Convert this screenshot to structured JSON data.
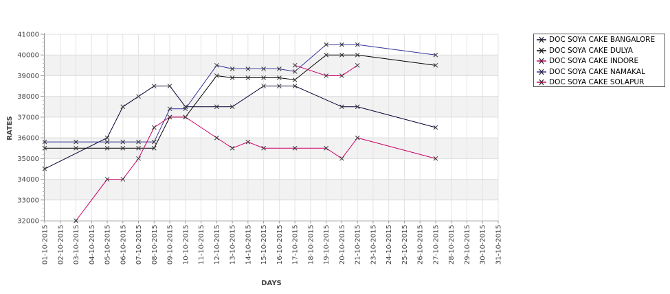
{
  "chart_data": {
    "type": "line",
    "title": "",
    "xlabel": "DAYS",
    "ylabel": "RATES",
    "ylim": [
      32000,
      41000
    ],
    "yticks": [
      32000,
      33000,
      34000,
      35000,
      36000,
      37000,
      38000,
      39000,
      40000,
      41000
    ],
    "categories": [
      "01-10-2015",
      "02-10-2015",
      "03-10-2015",
      "04-10-2015",
      "05-10-2015",
      "06-10-2015",
      "07-10-2015",
      "08-10-2015",
      "09-10-2015",
      "10-10-2015",
      "11-10-2015",
      "12-10-2015",
      "13-10-2015",
      "14-10-2015",
      "15-10-2015",
      "16-10-2015",
      "17-10-2015",
      "18-10-2015",
      "19-10-2015",
      "20-10-2015",
      "21-10-2015",
      "23-10-2015",
      "24-10-2015",
      "25-10-2015",
      "26-10-2015",
      "27-10-2015",
      "28-10-2015",
      "29-10-2015",
      "30-10-2015",
      "31-10-2015"
    ],
    "legend_position": "right",
    "grid": true,
    "series": [
      {
        "name": "DOC SOYA CAKE BANGALORE",
        "color": "#000033",
        "points": [
          [
            "01-10-2015",
            34500
          ],
          [
            "05-10-2015",
            36000
          ],
          [
            "06-10-2015",
            37500
          ],
          [
            "07-10-2015",
            38000
          ],
          [
            "08-10-2015",
            38500
          ],
          [
            "09-10-2015",
            38500
          ],
          [
            "10-10-2015",
            37500
          ],
          [
            "12-10-2015",
            37500
          ],
          [
            "13-10-2015",
            37500
          ],
          [
            "15-10-2015",
            38500
          ],
          [
            "16-10-2015",
            38500
          ],
          [
            "17-10-2015",
            38500
          ],
          [
            "20-10-2015",
            37500
          ],
          [
            "21-10-2015",
            37500
          ],
          [
            "27-10-2015",
            36500
          ]
        ]
      },
      {
        "name": "DOC SOYA CAKE DULYA",
        "color": "#000000",
        "points": [
          [
            "01-10-2015",
            35500
          ],
          [
            "03-10-2015",
            35500
          ],
          [
            "05-10-2015",
            35500
          ],
          [
            "06-10-2015",
            35500
          ],
          [
            "07-10-2015",
            35500
          ],
          [
            "08-10-2015",
            35500
          ],
          [
            "09-10-2015",
            37000
          ],
          [
            "10-10-2015",
            37000
          ],
          [
            "12-10-2015",
            39000
          ],
          [
            "13-10-2015",
            38900
          ],
          [
            "14-10-2015",
            38900
          ],
          [
            "15-10-2015",
            38900
          ],
          [
            "16-10-2015",
            38900
          ],
          [
            "17-10-2015",
            38800
          ],
          [
            "19-10-2015",
            40000
          ],
          [
            "20-10-2015",
            40000
          ],
          [
            "21-10-2015",
            40000
          ],
          [
            "27-10-2015",
            39500
          ]
        ]
      },
      {
        "name": "DOC SOYA CAKE INDORE",
        "color": "#cc0066",
        "points": [
          [
            "17-10-2015",
            39500
          ],
          [
            "19-10-2015",
            39000
          ],
          [
            "20-10-2015",
            39000
          ],
          [
            "21-10-2015",
            39500
          ]
        ]
      },
      {
        "name": "DOC SOYA CAKE NAMAKAL",
        "color": "#333399",
        "points": [
          [
            "01-10-2015",
            35800
          ],
          [
            "03-10-2015",
            35800
          ],
          [
            "05-10-2015",
            35800
          ],
          [
            "06-10-2015",
            35800
          ],
          [
            "07-10-2015",
            35800
          ],
          [
            "08-10-2015",
            35800
          ],
          [
            "09-10-2015",
            37400
          ],
          [
            "10-10-2015",
            37400
          ],
          [
            "12-10-2015",
            39500
          ],
          [
            "13-10-2015",
            39330
          ],
          [
            "14-10-2015",
            39330
          ],
          [
            "15-10-2015",
            39330
          ],
          [
            "16-10-2015",
            39330
          ],
          [
            "17-10-2015",
            39200
          ],
          [
            "19-10-2015",
            40500
          ],
          [
            "20-10-2015",
            40500
          ],
          [
            "21-10-2015",
            40500
          ],
          [
            "27-10-2015",
            40000
          ]
        ]
      },
      {
        "name": "DOC SOYA CAKE SOLAPUR",
        "color": "#cc0066",
        "points": [
          [
            "03-10-2015",
            32000
          ],
          [
            "05-10-2015",
            34000
          ],
          [
            "06-10-2015",
            34000
          ],
          [
            "07-10-2015",
            35000
          ],
          [
            "08-10-2015",
            36500
          ],
          [
            "09-10-2015",
            37000
          ],
          [
            "10-10-2015",
            37000
          ],
          [
            "12-10-2015",
            36000
          ],
          [
            "13-10-2015",
            35500
          ],
          [
            "14-10-2015",
            35800
          ],
          [
            "15-10-2015",
            35500
          ],
          [
            "17-10-2015",
            35500
          ],
          [
            "19-10-2015",
            35500
          ],
          [
            "20-10-2015",
            35000
          ],
          [
            "21-10-2015",
            36000
          ],
          [
            "27-10-2015",
            35000
          ]
        ]
      }
    ]
  }
}
